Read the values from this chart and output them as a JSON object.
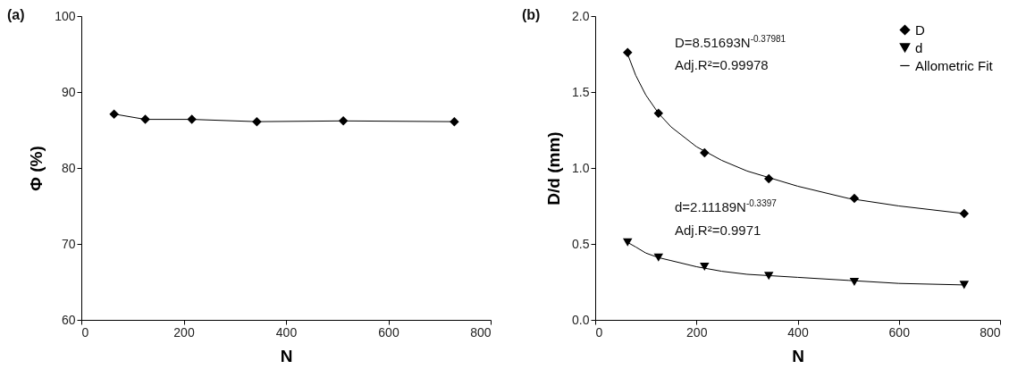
{
  "chart_data": [
    {
      "type": "line",
      "title": "(a)",
      "xlabel": "N",
      "ylabel": "Φ (%)",
      "x": [
        64,
        125,
        216,
        343,
        512,
        729
      ],
      "marker": "diamond",
      "grid": false,
      "series": [
        {
          "color": "#000000",
          "values": [
            87.1,
            86.4,
            86.4,
            86.1,
            86.2,
            86.1
          ]
        }
      ],
      "xlim": [
        0,
        800
      ],
      "xticks": [
        0,
        200,
        400,
        600,
        800
      ],
      "ylim": [
        60,
        100
      ],
      "yticks": [
        60,
        70,
        80,
        90,
        100
      ]
    },
    {
      "type": "scatter",
      "title": "(b)",
      "xlabel": "N",
      "ylabel": "D/d (mm)",
      "grid": false,
      "legend": "top right",
      "annotations": [
        "D=8.51693N$^{-0.37981}$",
        "Adj.R²=0.99978",
        "d=2.11189N$^{-0.3397}$",
        "Adj.R²=0.9971"
      ],
      "series": [
        {
          "name": "D",
          "color": "#000000",
          "marker": "diamond",
          "x": [
            64,
            125,
            216,
            343,
            512,
            729
          ],
          "values": [
            1.76,
            1.36,
            1.1,
            0.93,
            0.8,
            0.7
          ]
        },
        {
          "name": "d",
          "color": "#000000",
          "marker": "triangle",
          "x": [
            64,
            125,
            216,
            343,
            512,
            729
          ],
          "values": [
            0.51,
            0.41,
            0.35,
            0.29,
            0.25,
            0.23
          ]
        },
        {
          "name": "Allometric Fit",
          "type": "line",
          "color": "#000000",
          "marker": "none",
          "x": [
            64,
            80,
            100,
            125,
            150,
            200,
            250,
            300,
            400,
            500,
            600,
            729
          ],
          "values": [
            1.75,
            1.61,
            1.48,
            1.36,
            1.27,
            1.14,
            1.05,
            0.98,
            0.88,
            0.8,
            0.75,
            0.7
          ]
        },
        {
          "type": "line",
          "color": "#000000",
          "marker": "none",
          "x": [
            64,
            80,
            100,
            125,
            150,
            200,
            250,
            300,
            400,
            500,
            600,
            729
          ],
          "values": [
            0.51,
            0.48,
            0.44,
            0.41,
            0.39,
            0.35,
            0.32,
            0.3,
            0.28,
            0.26,
            0.24,
            0.23
          ]
        }
      ],
      "xlim": [
        0,
        800
      ],
      "xticks": [
        0,
        200,
        400,
        600,
        800
      ],
      "ylim": [
        0,
        2
      ],
      "yticks": [
        {
          "value": 0,
          "label": "0.0"
        },
        {
          "value": 0.5,
          "label": "0.5"
        },
        {
          "value": 1,
          "label": "1.0"
        },
        {
          "value": 1.5,
          "label": "1.5"
        },
        {
          "value": 2,
          "label": "2.0"
        }
      ]
    }
  ]
}
